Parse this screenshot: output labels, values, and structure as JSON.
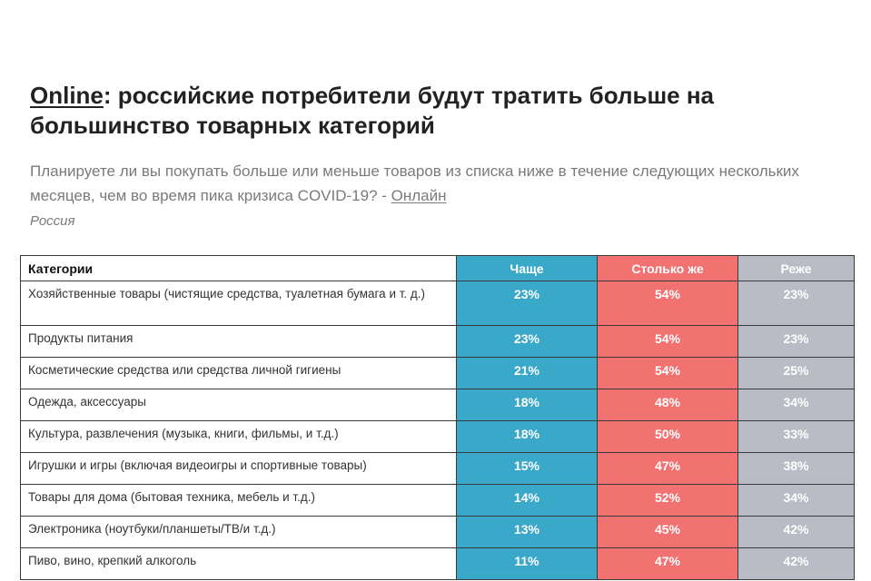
{
  "header": {
    "title_online": "Online",
    "title_rest": ": российские потребители будут тратить больше на большинство товарных категорий",
    "subtitle_main": "Планируете ли вы покупать больше или меньше товаров из списка ниже в течение следующих нескольких месяцев, чем во время пика кризиса COVID-19? - ",
    "subtitle_link": "Онлайн",
    "subtitle_country": "Россия"
  },
  "table": {
    "headers": {
      "category": "Категории",
      "more": "Чаще",
      "same": "Столько же",
      "less": "Реже"
    },
    "rows": [
      {
        "category": "Хозяйственные товары (чистящие средства, туалетная бумага и т. д.)",
        "more": "23%",
        "same": "54%",
        "less": "23%"
      },
      {
        "category": "Продукты питания",
        "more": "23%",
        "same": "54%",
        "less": "23%"
      },
      {
        "category": "Косметические средства или средства личной гигиены",
        "more": "21%",
        "same": "54%",
        "less": "25%"
      },
      {
        "category": "Одежда, аксессуары",
        "more": "18%",
        "same": "48%",
        "less": "34%"
      },
      {
        "category": "Культура, развлечения (музыка, книги, фильмы, и т.д.)",
        "more": "18%",
        "same": "50%",
        "less": "33%"
      },
      {
        "category": "Игрушки и игры (включая видеоигры и спортивные товары)",
        "more": "15%",
        "same": "47%",
        "less": "38%"
      },
      {
        "category": "Товары для дома (бытовая техника, мебель и т.д.)",
        "more": "14%",
        "same": "52%",
        "less": "34%"
      },
      {
        "category": "Электроника (ноутбуки/планшеты/ТВ/и т.д.)",
        "more": "13%",
        "same": "45%",
        "less": "42%"
      },
      {
        "category": "Пиво, вино, крепкий алкоголь",
        "more": "11%",
        "same": "47%",
        "less": "42%"
      }
    ]
  },
  "colors": {
    "more": "#3aa8c9",
    "same": "#f27272",
    "less": "#b9bcc4"
  }
}
